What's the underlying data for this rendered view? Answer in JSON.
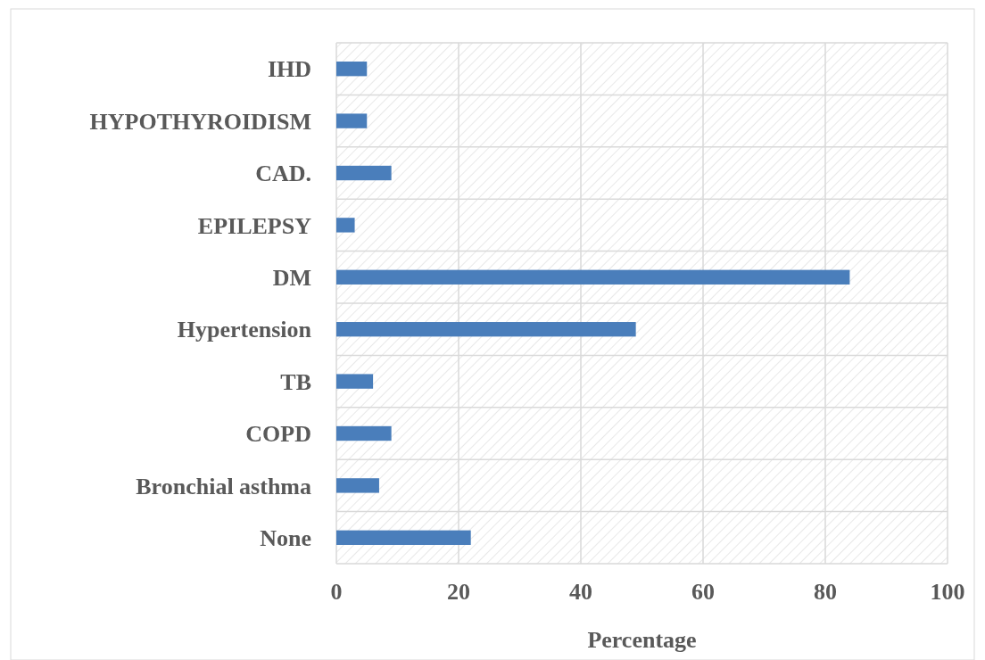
{
  "chart_data": {
    "type": "bar",
    "orientation": "horizontal",
    "xlabel": "Percentage",
    "categories": [
      "IHD",
      "HYPOTHYROIDISM",
      "CAD.",
      "EPILEPSY",
      "DM",
      "Hypertension",
      "TB",
      "COPD",
      "Bronchial asthma",
      "None"
    ],
    "values": [
      5,
      5,
      9,
      3,
      84,
      49,
      6,
      9,
      7,
      22
    ],
    "color": "#4a7ebb",
    "xlim": [
      0,
      100
    ],
    "xticks": [
      0,
      20,
      40,
      60,
      80,
      100
    ],
    "grid": true
  }
}
